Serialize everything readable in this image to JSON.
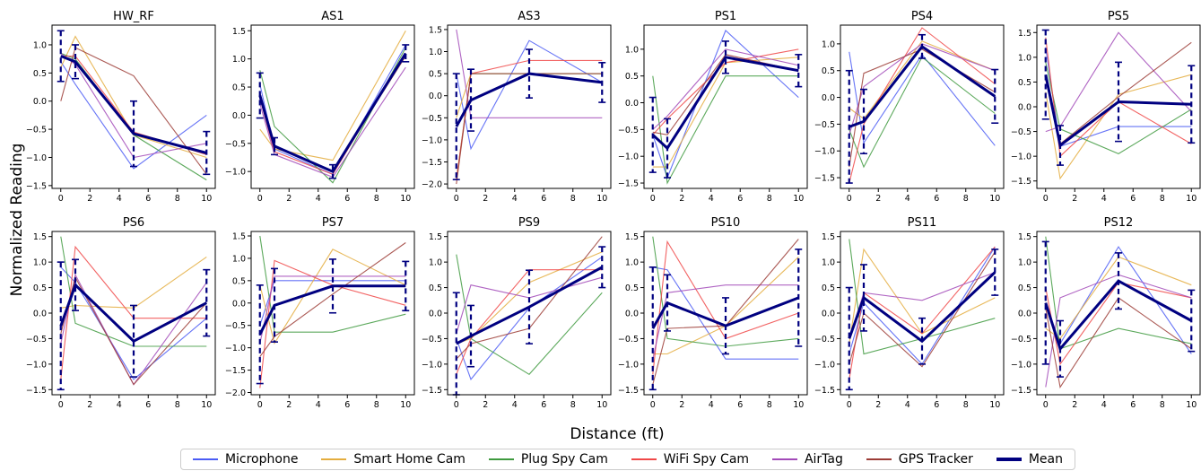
{
  "figure": {
    "ylabel": "Normalized Reading",
    "xlabel": "Distance (ft)"
  },
  "legend": [
    {
      "name": "Microphone",
      "color": "#4b5cf5"
    },
    {
      "name": "Smart Home Cam",
      "color": "#e4ad3e"
    },
    {
      "name": "Plug Spy Cam",
      "color": "#3f9a3f"
    },
    {
      "name": "WiFi Spy Cam",
      "color": "#f04848"
    },
    {
      "name": "AirTag",
      "color": "#a24ab8"
    },
    {
      "name": "GPS Tracker",
      "color": "#9c3c36"
    },
    {
      "name": "Mean",
      "color": "#000080"
    }
  ],
  "chart_data": [
    {
      "type": "line",
      "title": "HW_RF",
      "x": [
        0,
        1,
        5,
        10
      ],
      "ylim": [
        -1.55,
        1.35
      ],
      "yticks": [
        -1.5,
        -1.0,
        -0.5,
        0.0,
        0.5,
        1.0
      ],
      "series": [
        {
          "name": "Microphone",
          "values": [
            0.7,
            0.3,
            -1.2,
            -0.25
          ]
        },
        {
          "name": "Smart Home Cam",
          "values": [
            0.6,
            1.15,
            -0.6,
            -1.0
          ]
        },
        {
          "name": "Plug Spy Cam",
          "values": [
            0.85,
            0.75,
            -0.6,
            -1.4
          ]
        },
        {
          "name": "WiFi Spy Cam",
          "values": [
            0.8,
            0.8,
            -0.55,
            -0.95
          ]
        },
        {
          "name": "AirTag",
          "values": [
            0.85,
            0.65,
            -1.0,
            -0.75
          ]
        },
        {
          "name": "GPS Tracker",
          "values": [
            0.0,
            0.95,
            0.45,
            -1.3
          ]
        },
        {
          "name": "Mean",
          "values": [
            0.8,
            0.7,
            -0.58,
            -0.92
          ]
        }
      ],
      "errors": [
        0.45,
        0.3,
        0.58,
        0.38
      ]
    },
    {
      "type": "line",
      "title": "AS1",
      "x": [
        0,
        1,
        5,
        10
      ],
      "ylim": [
        -1.3,
        1.6
      ],
      "yticks": [
        -1.0,
        -0.5,
        0.0,
        0.5,
        1.0,
        1.5
      ],
      "series": [
        {
          "name": "Microphone",
          "values": [
            0.55,
            -0.6,
            -1.05,
            1.25
          ]
        },
        {
          "name": "Smart Home Cam",
          "values": [
            -0.25,
            -0.6,
            -0.8,
            1.5
          ]
        },
        {
          "name": "Plug Spy Cam",
          "values": [
            0.8,
            -0.2,
            -1.2,
            1.2
          ]
        },
        {
          "name": "WiFi Spy Cam",
          "values": [
            0.3,
            -0.65,
            -1.05,
            1.1
          ]
        },
        {
          "name": "AirTag",
          "values": [
            0.2,
            -0.7,
            -1.1,
            0.85
          ]
        },
        {
          "name": "GPS Tracker",
          "values": [
            0.4,
            -0.55,
            -1.0,
            1.05
          ]
        },
        {
          "name": "Mean",
          "values": [
            0.35,
            -0.55,
            -1.0,
            1.1
          ]
        }
      ],
      "errors": [
        0.4,
        0.15,
        0.12,
        0.15
      ]
    },
    {
      "type": "line",
      "title": "AS3",
      "x": [
        0,
        1,
        5,
        10
      ],
      "ylim": [
        -2.1,
        1.6
      ],
      "yticks": [
        -2.0,
        -1.5,
        -1.0,
        -0.5,
        0.0,
        0.5,
        1.0,
        1.5
      ],
      "series": [
        {
          "name": "Microphone",
          "values": [
            0.5,
            -1.2,
            1.25,
            0.3
          ]
        },
        {
          "name": "Smart Home Cam",
          "values": [
            -0.5,
            0.5,
            0.5,
            0.5
          ]
        },
        {
          "name": "Plug Spy Cam",
          "values": [
            -1.9,
            0.5,
            0.5,
            0.5
          ]
        },
        {
          "name": "WiFi Spy Cam",
          "values": [
            -1.9,
            0.5,
            0.8,
            0.8
          ]
        },
        {
          "name": "AirTag",
          "values": [
            1.5,
            -0.5,
            -0.5,
            -0.5
          ]
        },
        {
          "name": "GPS Tracker",
          "values": [
            -2.0,
            0.5,
            0.5,
            0.5
          ]
        },
        {
          "name": "Mean",
          "values": [
            -0.7,
            -0.1,
            0.5,
            0.3
          ]
        }
      ],
      "errors": [
        1.2,
        0.7,
        0.55,
        0.45
      ]
    },
    {
      "type": "line",
      "title": "PS1",
      "x": [
        0,
        1,
        5,
        10
      ],
      "ylim": [
        -1.6,
        1.45
      ],
      "yticks": [
        -1.5,
        -1.0,
        -0.5,
        0.0,
        0.5,
        1.0
      ],
      "series": [
        {
          "name": "Microphone",
          "values": [
            -0.6,
            -1.4,
            1.35,
            0.1
          ]
        },
        {
          "name": "Smart Home Cam",
          "values": [
            -1.2,
            -1.2,
            0.75,
            0.85
          ]
        },
        {
          "name": "Plug Spy Cam",
          "values": [
            0.5,
            -1.5,
            0.5,
            0.5
          ]
        },
        {
          "name": "WiFi Spy Cam",
          "values": [
            -0.6,
            -0.3,
            0.75,
            1.0
          ]
        },
        {
          "name": "AirTag",
          "values": [
            -0.5,
            -0.25,
            1.0,
            0.7
          ]
        },
        {
          "name": "GPS Tracker",
          "values": [
            -0.55,
            -0.6,
            0.9,
            0.6
          ]
        },
        {
          "name": "Mean",
          "values": [
            -0.6,
            -0.85,
            0.85,
            0.6
          ]
        }
      ],
      "errors": [
        0.7,
        0.55,
        0.3,
        0.3
      ]
    },
    {
      "type": "line",
      "title": "PS4",
      "x": [
        0,
        1,
        5,
        10
      ],
      "ylim": [
        -1.7,
        1.35
      ],
      "yticks": [
        -1.5,
        -1.0,
        -0.5,
        0.0,
        0.5,
        1.0
      ],
      "series": [
        {
          "name": "Microphone",
          "values": [
            0.85,
            -0.85,
            0.8,
            -0.9
          ]
        },
        {
          "name": "Smart Home Cam",
          "values": [
            -0.2,
            -0.4,
            1.05,
            0.5
          ]
        },
        {
          "name": "Plug Spy Cam",
          "values": [
            -0.6,
            -1.3,
            0.75,
            -0.3
          ]
        },
        {
          "name": "WiFi Spy Cam",
          "values": [
            -1.6,
            -0.5,
            1.3,
            0.25
          ]
        },
        {
          "name": "AirTag",
          "values": [
            -0.7,
            0.2,
            1.0,
            0.5
          ]
        },
        {
          "name": "GPS Tracker",
          "values": [
            -1.3,
            0.45,
            0.9,
            0.1
          ]
        },
        {
          "name": "Mean",
          "values": [
            -0.55,
            -0.45,
            0.95,
            0.02
          ]
        }
      ],
      "errors": [
        1.05,
        0.6,
        0.22,
        0.5
      ]
    },
    {
      "type": "line",
      "title": "PS5",
      "x": [
        0,
        1,
        5,
        10
      ],
      "ylim": [
        -1.65,
        1.65
      ],
      "yticks": [
        -1.5,
        -1.0,
        -0.5,
        0.0,
        0.5,
        1.0,
        1.5
      ],
      "series": [
        {
          "name": "Microphone",
          "values": [
            1.2,
            -0.8,
            -0.4,
            -0.4
          ]
        },
        {
          "name": "Smart Home Cam",
          "values": [
            0.3,
            -1.45,
            0.25,
            0.65
          ]
        },
        {
          "name": "Plug Spy Cam",
          "values": [
            0.9,
            -0.45,
            -0.95,
            -0.05
          ]
        },
        {
          "name": "WiFi Spy Cam",
          "values": [
            1.4,
            -1.0,
            0.1,
            -0.75
          ]
        },
        {
          "name": "AirTag",
          "values": [
            -0.5,
            -0.4,
            1.5,
            -0.1
          ]
        },
        {
          "name": "GPS Tracker",
          "values": [
            0.55,
            -0.75,
            0.2,
            1.3
          ]
        },
        {
          "name": "Mean",
          "values": [
            0.65,
            -0.78,
            0.1,
            0.05
          ]
        }
      ],
      "errors": [
        0.9,
        0.4,
        0.8,
        0.78
      ]
    },
    {
      "type": "line",
      "title": "PS6",
      "x": [
        0,
        1,
        5,
        10
      ],
      "ylim": [
        -1.6,
        1.6
      ],
      "yticks": [
        -1.5,
        -1.0,
        -0.5,
        0.0,
        0.5,
        1.0,
        1.5
      ],
      "series": [
        {
          "name": "Microphone",
          "values": [
            0.9,
            0.6,
            -1.3,
            -0.1
          ]
        },
        {
          "name": "Smart Home Cam",
          "values": [
            0.1,
            0.15,
            0.1,
            1.1
          ]
        },
        {
          "name": "Plug Spy Cam",
          "values": [
            1.5,
            -0.2,
            -0.65,
            -0.65
          ]
        },
        {
          "name": "WiFi Spy Cam",
          "values": [
            -1.3,
            1.3,
            -0.1,
            -0.1
          ]
        },
        {
          "name": "AirTag",
          "values": [
            -0.6,
            0.75,
            -1.4,
            0.6
          ]
        },
        {
          "name": "GPS Tracker",
          "values": [
            -0.4,
            0.7,
            -1.4,
            0.2
          ]
        },
        {
          "name": "Mean",
          "values": [
            -0.25,
            0.55,
            -0.55,
            0.2
          ]
        }
      ],
      "errors": [
        1.25,
        0.5,
        0.7,
        0.65
      ]
    },
    {
      "type": "line",
      "title": "PS7",
      "x": [
        0,
        1,
        5,
        10
      ],
      "ylim": [
        -2.05,
        1.6
      ],
      "yticks": [
        -2.0,
        -1.5,
        -1.0,
        -0.5,
        0.0,
        0.5,
        1.0,
        1.5
      ],
      "series": [
        {
          "name": "Microphone",
          "values": [
            -0.5,
            0.5,
            0.5,
            0.5
          ]
        },
        {
          "name": "Smart Home Cam",
          "values": [
            0.4,
            -0.9,
            1.2,
            0.4
          ]
        },
        {
          "name": "Plug Spy Cam",
          "values": [
            1.5,
            -0.65,
            -0.65,
            -0.25
          ]
        },
        {
          "name": "WiFi Spy Cam",
          "values": [
            -1.9,
            0.95,
            0.4,
            -0.05
          ]
        },
        {
          "name": "AirTag",
          "values": [
            -0.9,
            0.6,
            0.6,
            0.6
          ]
        },
        {
          "name": "GPS Tracker",
          "values": [
            -1.2,
            -0.75,
            0.2,
            1.35
          ]
        },
        {
          "name": "Mean",
          "values": [
            -0.7,
            -0.05,
            0.38,
            0.38
          ]
        }
      ],
      "errors": [
        1.1,
        0.82,
        0.6,
        0.55
      ]
    },
    {
      "type": "line",
      "title": "PS9",
      "x": [
        0,
        1,
        5,
        10
      ],
      "ylim": [
        -1.6,
        1.6
      ],
      "yticks": [
        -1.5,
        -1.0,
        -0.5,
        0.0,
        0.5,
        1.0,
        1.5
      ],
      "series": [
        {
          "name": "Microphone",
          "values": [
            -0.5,
            -1.3,
            0.1,
            1.1
          ]
        },
        {
          "name": "Smart Home Cam",
          "values": [
            -0.6,
            -0.5,
            0.6,
            1.2
          ]
        },
        {
          "name": "Plug Spy Cam",
          "values": [
            1.15,
            -0.5,
            -1.2,
            0.4
          ]
        },
        {
          "name": "WiFi Spy Cam",
          "values": [
            -1.2,
            -0.5,
            0.85,
            0.85
          ]
        },
        {
          "name": "AirTag",
          "values": [
            -0.4,
            0.55,
            0.3,
            0.7
          ]
        },
        {
          "name": "GPS Tracker",
          "values": [
            -0.9,
            -0.6,
            -0.3,
            1.5
          ]
        },
        {
          "name": "Mean",
          "values": [
            -0.6,
            -0.45,
            0.12,
            0.9
          ]
        }
      ],
      "errors": [
        1.0,
        0.6,
        0.72,
        0.4
      ]
    },
    {
      "type": "line",
      "title": "PS10",
      "x": [
        0,
        1,
        5,
        10
      ],
      "ylim": [
        -1.6,
        1.6
      ],
      "yticks": [
        -1.5,
        -1.0,
        -0.5,
        0.0,
        0.5,
        1.0,
        1.5
      ],
      "series": [
        {
          "name": "Microphone",
          "values": [
            0.9,
            0.85,
            -0.9,
            -0.9
          ]
        },
        {
          "name": "Smart Home Cam",
          "values": [
            -0.8,
            -0.8,
            -0.25,
            1.1
          ]
        },
        {
          "name": "Plug Spy Cam",
          "values": [
            1.5,
            -0.5,
            -0.65,
            -0.5
          ]
        },
        {
          "name": "WiFi Spy Cam",
          "values": [
            -1.2,
            1.4,
            -0.5,
            0.0
          ]
        },
        {
          "name": "AirTag",
          "values": [
            -0.9,
            0.4,
            0.55,
            0.55
          ]
        },
        {
          "name": "GPS Tracker",
          "values": [
            -1.4,
            -0.3,
            -0.25,
            1.45
          ]
        },
        {
          "name": "Mean",
          "values": [
            -0.3,
            0.2,
            -0.25,
            0.3
          ]
        }
      ],
      "errors": [
        1.2,
        0.55,
        0.55,
        0.95
      ]
    },
    {
      "type": "line",
      "title": "PS11",
      "x": [
        0,
        1,
        5,
        10
      ],
      "ylim": [
        -1.6,
        1.6
      ],
      "yticks": [
        -1.5,
        -1.0,
        -0.5,
        0.0,
        0.5,
        1.0,
        1.5
      ],
      "series": [
        {
          "name": "Microphone",
          "values": [
            -0.8,
            0.2,
            -1.0,
            1.3
          ]
        },
        {
          "name": "Smart Home Cam",
          "values": [
            -0.6,
            1.25,
            -0.4,
            0.3
          ]
        },
        {
          "name": "Plug Spy Cam",
          "values": [
            1.45,
            -0.8,
            -0.5,
            -0.1
          ]
        },
        {
          "name": "WiFi Spy Cam",
          "values": [
            -1.3,
            0.4,
            -0.4,
            1.3
          ]
        },
        {
          "name": "AirTag",
          "values": [
            -0.5,
            0.4,
            0.25,
            0.8
          ]
        },
        {
          "name": "GPS Tracker",
          "values": [
            -1.0,
            0.0,
            -1.05,
            1.2
          ]
        },
        {
          "name": "Mean",
          "values": [
            -0.5,
            0.3,
            -0.55,
            0.8
          ]
        }
      ],
      "errors": [
        1.0,
        0.65,
        0.45,
        0.45
      ]
    },
    {
      "type": "line",
      "title": "PS12",
      "x": [
        0,
        1,
        5,
        10
      ],
      "ylim": [
        -1.6,
        1.6
      ],
      "yticks": [
        -1.5,
        -1.0,
        -0.5,
        0.0,
        0.5,
        1.0,
        1.5
      ],
      "series": [
        {
          "name": "Microphone",
          "values": [
            0.2,
            -0.6,
            1.3,
            -0.8
          ]
        },
        {
          "name": "Smart Home Cam",
          "values": [
            -0.3,
            -0.5,
            1.1,
            0.55
          ]
        },
        {
          "name": "Plug Spy Cam",
          "values": [
            1.5,
            -0.7,
            -0.3,
            -0.6
          ]
        },
        {
          "name": "WiFi Spy Cam",
          "values": [
            0.5,
            -1.0,
            0.6,
            0.3
          ]
        },
        {
          "name": "AirTag",
          "values": [
            -1.45,
            0.3,
            0.75,
            0.3
          ]
        },
        {
          "name": "GPS Tracker",
          "values": [
            0.1,
            -1.45,
            0.3,
            -0.7
          ]
        },
        {
          "name": "Mean",
          "values": [
            0.2,
            -0.7,
            0.63,
            -0.15
          ]
        }
      ],
      "errors": [
        1.2,
        0.55,
        0.55,
        0.6
      ]
    }
  ]
}
